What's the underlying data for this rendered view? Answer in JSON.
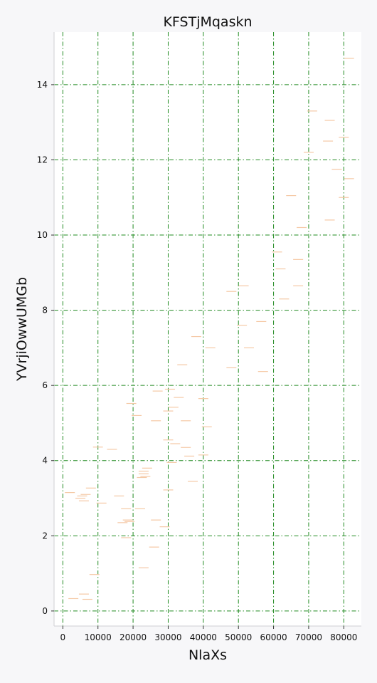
{
  "chart_data": {
    "type": "scatter",
    "marker": "horizontal-dash",
    "title": "KFSTjMqaskn",
    "xlabel": "NlaXs",
    "ylabel": "YVrjiOwwUMGb",
    "xlim": [
      -2500,
      85000
    ],
    "ylim": [
      -0.4,
      15.4
    ],
    "xticks": [
      0,
      10000,
      20000,
      30000,
      40000,
      50000,
      60000,
      70000,
      80000
    ],
    "yticks": [
      0,
      2,
      4,
      6,
      8,
      10,
      12,
      14
    ],
    "grid": true,
    "grid_style": "dash-dot",
    "colors": {
      "background": "#f7f7f9",
      "plot_area": "#ffffff",
      "grid": "#228b22",
      "marker": "#f5c9a6"
    },
    "series": [
      {
        "points": [
          [
            3000,
            0.33
          ],
          [
            6000,
            0.45
          ],
          [
            7000,
            0.31
          ],
          [
            9000,
            0.97
          ],
          [
            23000,
            1.15
          ],
          [
            26000,
            1.7
          ],
          [
            18000,
            1.95
          ],
          [
            17000,
            2.35
          ],
          [
            18500,
            2.42
          ],
          [
            19000,
            2.38
          ],
          [
            22000,
            2.72
          ],
          [
            26500,
            2.42
          ],
          [
            29000,
            2.24
          ],
          [
            6000,
            2.93
          ],
          [
            11000,
            2.87
          ],
          [
            16000,
            3.06
          ],
          [
            18000,
            2.72
          ],
          [
            5000,
            3.0
          ],
          [
            5500,
            3.06
          ],
          [
            6500,
            3.1
          ],
          [
            2000,
            3.15
          ],
          [
            8000,
            3.27
          ],
          [
            30000,
            3.22
          ],
          [
            37000,
            3.45
          ],
          [
            22500,
            3.55
          ],
          [
            23500,
            3.58
          ],
          [
            23000,
            3.65
          ],
          [
            23000,
            3.72
          ],
          [
            24000,
            3.8
          ],
          [
            31000,
            3.95
          ],
          [
            36000,
            4.12
          ],
          [
            40000,
            4.15
          ],
          [
            35000,
            4.35
          ],
          [
            10000,
            4.36
          ],
          [
            14000,
            4.3
          ],
          [
            32000,
            4.45
          ],
          [
            30000,
            4.55
          ],
          [
            41000,
            4.9
          ],
          [
            26500,
            5.06
          ],
          [
            35000,
            5.06
          ],
          [
            21000,
            5.2
          ],
          [
            30000,
            5.32
          ],
          [
            31500,
            5.42
          ],
          [
            19500,
            5.52
          ],
          [
            33000,
            5.68
          ],
          [
            40000,
            5.65
          ],
          [
            27000,
            5.85
          ],
          [
            30500,
            5.9
          ],
          [
            34000,
            6.55
          ],
          [
            48000,
            6.47
          ],
          [
            57000,
            6.37
          ],
          [
            42000,
            7.0
          ],
          [
            53000,
            7.0
          ],
          [
            38000,
            7.3
          ],
          [
            51000,
            7.6
          ],
          [
            56500,
            7.7
          ],
          [
            63000,
            8.3
          ],
          [
            48000,
            8.5
          ],
          [
            51500,
            8.65
          ],
          [
            67000,
            8.65
          ],
          [
            62000,
            9.1
          ],
          [
            67000,
            9.35
          ],
          [
            61000,
            9.55
          ],
          [
            68000,
            10.2
          ],
          [
            76000,
            10.4
          ],
          [
            65000,
            11.05
          ],
          [
            80000,
            11.0
          ],
          [
            81500,
            11.5
          ],
          [
            78000,
            11.75
          ],
          [
            70000,
            12.2
          ],
          [
            75500,
            12.5
          ],
          [
            80000,
            12.6
          ],
          [
            76000,
            13.05
          ],
          [
            71000,
            13.3
          ],
          [
            81500,
            14.7
          ]
        ]
      }
    ]
  }
}
